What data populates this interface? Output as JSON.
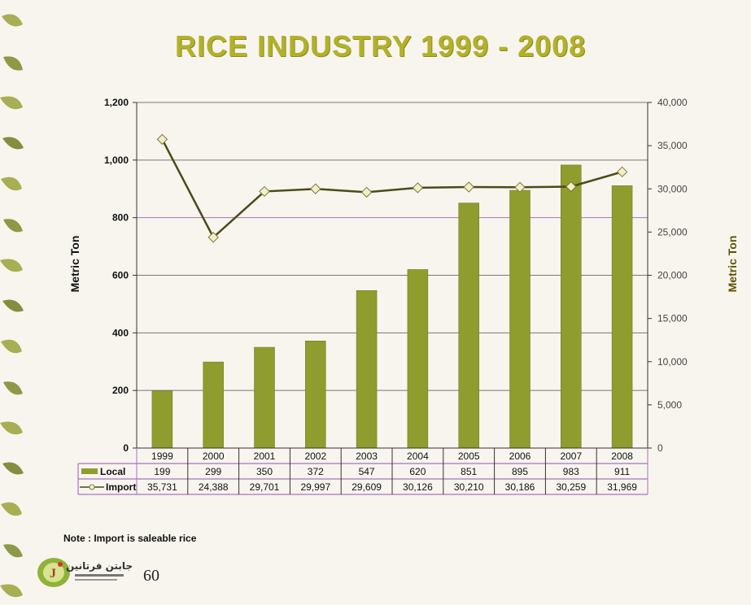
{
  "page": {
    "title": "RICE INDUSTRY 1999 - 2008",
    "note": "Note : Import is saleable rice",
    "page_number": "60",
    "logo_text": "جابتن فرتانين"
  },
  "colors": {
    "title": "#b3b12a",
    "bar": "#8f9c2e",
    "line": "#4a4a18",
    "marker_fill": "#f3efc4",
    "gridline": "#777777",
    "purple_line": "#a675bd",
    "right_axis_label": "#5a5400"
  },
  "chart_data": {
    "type": "bar",
    "title": "RICE INDUSTRY 1999 - 2008",
    "categories": [
      "1999",
      "2000",
      "2001",
      "2002",
      "2003",
      "2004",
      "2005",
      "2006",
      "2007",
      "2008"
    ],
    "series": [
      {
        "name": "Local",
        "type": "bar",
        "axis": "left",
        "values": [
          199,
          299,
          350,
          372,
          547,
          620,
          851,
          895,
          983,
          911
        ],
        "labels": [
          "199",
          "299",
          "350",
          "372",
          "547",
          "620",
          "851",
          "895",
          "983",
          "911"
        ]
      },
      {
        "name": "Import",
        "type": "line",
        "axis": "right",
        "values": [
          35731,
          24388,
          29701,
          29997,
          29609,
          30126,
          30210,
          30186,
          30259,
          31969
        ],
        "labels": [
          "35,731",
          "24,388",
          "29,701",
          "29,997",
          "29,609",
          "30,126",
          "30,210",
          "30,186",
          "30,259",
          "31,969"
        ]
      }
    ],
    "ylabel": "Metric Ton",
    "y2label": "Metric Ton",
    "ylim": [
      0,
      1200
    ],
    "y2lim": [
      0,
      40000
    ],
    "yticks": [
      "0",
      "200",
      "400",
      "600",
      "800",
      "1,000",
      "1,200"
    ],
    "y2ticks": [
      "0",
      "5,000",
      "10,000",
      "15,000",
      "20,000",
      "25,000",
      "30,000",
      "35,000",
      "40,000"
    ],
    "grid": true,
    "legend": "data-table"
  }
}
